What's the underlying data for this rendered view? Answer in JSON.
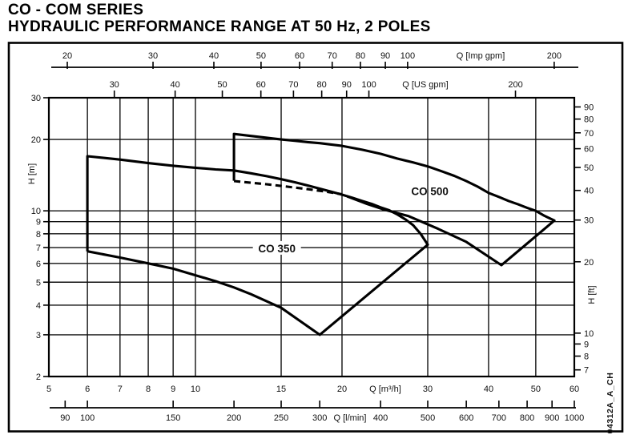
{
  "title": {
    "line1": "CO - COM SERIES",
    "line2": "HYDRAULIC PERFORMANCE RANGE AT 50 Hz, 2 POLES"
  },
  "watermark": "04312A_A_CH",
  "chart_data": {
    "type": "line",
    "scale": {
      "x": "log",
      "y": "log"
    },
    "xlim_m3h": [
      5,
      60
    ],
    "ylim_m": [
      2,
      30
    ],
    "grid": "on",
    "x_gridlines_m3h": [
      6,
      7,
      8,
      9,
      10,
      15,
      20,
      30,
      40,
      50
    ],
    "y_gridlines_m": [
      3,
      4,
      5,
      6,
      7,
      8,
      9,
      10,
      20
    ],
    "x_axes": [
      {
        "id": "imp_gpm",
        "label": "Q [Imp gpm]",
        "unit_to_m3h": 0.27276,
        "ticks": [
          20,
          30,
          40,
          50,
          60,
          70,
          80,
          90,
          100,
          200
        ]
      },
      {
        "id": "us_gpm",
        "label": "Q [US gpm]",
        "unit_to_m3h": 0.22712,
        "ticks": [
          30,
          40,
          50,
          60,
          70,
          80,
          90,
          100,
          200
        ]
      },
      {
        "id": "m3h",
        "label": "Q [m³/h]",
        "unit_to_m3h": 1,
        "ticks": [
          5,
          6,
          7,
          8,
          9,
          10,
          15,
          20,
          30,
          40,
          50,
          60
        ]
      },
      {
        "id": "lmin",
        "label": "Q [l/min]",
        "unit_to_m3h": 0.06,
        "ticks": [
          90,
          100,
          150,
          200,
          250,
          300,
          400,
          500,
          600,
          700,
          800,
          900,
          1000
        ]
      }
    ],
    "y_axes": [
      {
        "id": "m",
        "label": "H [m]",
        "unit_to_m": 1,
        "ticks": [
          30,
          20,
          10,
          9,
          8,
          7,
          6,
          5,
          4,
          3,
          2
        ]
      },
      {
        "id": "ft",
        "label": "H [ft]",
        "unit_to_m": 0.3048,
        "ticks": [
          90,
          80,
          70,
          60,
          50,
          40,
          30,
          20,
          10,
          9,
          8,
          7
        ]
      }
    ],
    "series": [
      {
        "name": "CO 350",
        "label_pos": {
          "q": 14.7,
          "h": 6.95,
          "white_bg": true
        },
        "segments": [
          {
            "style": "solid",
            "points": [
              [
                6,
                6.75
              ],
              [
                6,
                17
              ],
              [
                7,
                16.45
              ],
              [
                8,
                15.9
              ],
              [
                9,
                15.5
              ],
              [
                10,
                15.2
              ],
              [
                11,
                14.95
              ],
              [
                12,
                14.8
              ],
              [
                13,
                14.4
              ],
              [
                14,
                14.0
              ],
              [
                15,
                13.6
              ],
              [
                16,
                13.2
              ],
              [
                17,
                12.8
              ],
              [
                18,
                12.4
              ],
              [
                19,
                12.05
              ],
              [
                20,
                11.7
              ],
              [
                21,
                11.35
              ],
              [
                22,
                11.0
              ],
              [
                23,
                10.7
              ],
              [
                24,
                10.35
              ],
              [
                25,
                10.05
              ],
              [
                26,
                9.65
              ],
              [
                27,
                9.2
              ],
              [
                28,
                8.7
              ],
              [
                29,
                8.0
              ],
              [
                30,
                7.2
              ],
              [
                18,
                3.0
              ],
              [
                15,
                3.9
              ],
              [
                13,
                4.45
              ],
              [
                12,
                4.75
              ],
              [
                11,
                5.05
              ],
              [
                10,
                5.35
              ],
              [
                9,
                5.7
              ],
              [
                8,
                6.0
              ],
              [
                7,
                6.35
              ],
              [
                6,
                6.75
              ]
            ]
          }
        ]
      },
      {
        "name": "CO 500",
        "label_pos": {
          "q": 30.3,
          "h": 12.1,
          "white_bg": false
        },
        "segments": [
          {
            "style": "solid",
            "points": [
              [
                12,
                13.4
              ],
              [
                12,
                21.1
              ],
              [
                13,
                20.7
              ],
              [
                14,
                20.35
              ],
              [
                15,
                20.0
              ],
              [
                16,
                19.75
              ],
              [
                17,
                19.5
              ],
              [
                18,
                19.3
              ],
              [
                19,
                19.05
              ],
              [
                20,
                18.8
              ],
              [
                22,
                18.1
              ],
              [
                24,
                17.4
              ],
              [
                26,
                16.6
              ],
              [
                28,
                16.0
              ],
              [
                30,
                15.4
              ],
              [
                32,
                14.7
              ],
              [
                34,
                14.05
              ],
              [
                36,
                13.35
              ],
              [
                38,
                12.65
              ],
              [
                40,
                11.9
              ],
              [
                42,
                11.45
              ],
              [
                44,
                11.0
              ],
              [
                46,
                10.65
              ],
              [
                48,
                10.3
              ],
              [
                50,
                10.0
              ],
              [
                52,
                9.55
              ],
              [
                54.6,
                9.1
              ],
              [
                42.5,
                5.9
              ],
              [
                36,
                7.4
              ],
              [
                31.5,
                8.4
              ],
              [
                27.4,
                9.5
              ],
              [
                24.5,
                10.1
              ],
              [
                22.5,
                10.7
              ],
              [
                20.5,
                11.5
              ]
            ]
          },
          {
            "style": "dashed",
            "points": [
              [
                12,
                13.35
              ],
              [
                14,
                12.95
              ],
              [
                15.2,
                12.7
              ],
              [
                17,
                12.35
              ],
              [
                18.5,
                12.05
              ],
              [
                20,
                11.75
              ]
            ]
          }
        ]
      }
    ]
  }
}
